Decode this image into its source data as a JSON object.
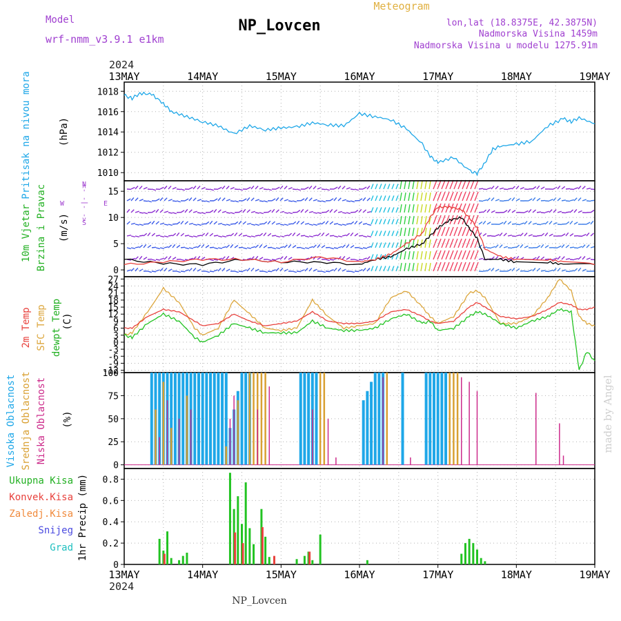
{
  "header": {
    "model_label": "Model",
    "model_name": "wrf-nmm_v3.9.1  e1km",
    "station_title": "NP_Lovcen",
    "product": "Meteogram",
    "coords": "lon,lat (18.8375E, 42.3875N)",
    "elevation": "Nadmorska Visina 1459m",
    "model_elevation": "Nadmorska Visina u modelu 1275.91m",
    "footer_station": "NP_Lovcen",
    "credit": "made by Angel"
  },
  "colors": {
    "pressure": "#1ea7e8",
    "temp2m": "#e8413c",
    "sfc": "#dca63c",
    "dewpt": "#22c322",
    "high_cloud": "#1ea7e8",
    "mid_cloud": "#d9a032",
    "low_cloud": "#cc2a8a",
    "total_precip": "#22c322",
    "conv_precip": "#e8413c",
    "frozen_precip": "#f08a3c",
    "snow": "#4a4ae0",
    "hail": "#20c0c0",
    "purple_text": "#a040d0",
    "gold_text": "#e0b040"
  },
  "time_axis": {
    "year": "2024",
    "ticks": [
      "13MAY",
      "14MAY",
      "15MAY",
      "16MAY",
      "17MAY",
      "18MAY",
      "19MAY"
    ]
  },
  "panels": {
    "pressure": {
      "label": "Pritisak na nivou mora",
      "unit": "(hPa)"
    },
    "wind": {
      "label1": "10m Vjetar",
      "label2": "Brzina i Pravac",
      "unit": "(m/s)",
      "compass": [
        "N",
        "W",
        "E",
        "S"
      ],
      "arrow_glyph": "<- -|- ->"
    },
    "temp": {
      "label1": "2m Temp",
      "label2": "SFC Temp",
      "label3": "dewpt Temp",
      "unit": "(C)"
    },
    "cloud": {
      "label1": "Visoka Oblacnost",
      "label2": "Srednja Oblacnost",
      "label3": "Niska Oblacnost",
      "unit": "(%)"
    },
    "precip": {
      "label": "1hr Precip (mm)",
      "legend": [
        "Ukupna Kisa",
        "Konvek.Kisa",
        "Zaledj.Kisa",
        "Snijeg",
        "Grad"
      ]
    }
  },
  "chart_data": [
    {
      "type": "line",
      "title": "Pritisak na nivou mora",
      "ylabel": "(hPa)",
      "ylim": [
        1009.2,
        1018.9
      ],
      "yticks": [
        "1018",
        "1016",
        "1014",
        "1012",
        "1010"
      ],
      "x_days": [
        0,
        0.1,
        0.2,
        0.35,
        0.5,
        0.6,
        0.8,
        1.0,
        1.2,
        1.4,
        1.6,
        1.8,
        2.0,
        2.2,
        2.4,
        2.6,
        2.8,
        3.0,
        3.2,
        3.4,
        3.6,
        3.8,
        3.9,
        4.0,
        4.2,
        4.4,
        4.5,
        4.6,
        4.7,
        4.8,
        5.0,
        5.2,
        5.4,
        5.6,
        5.7,
        5.8,
        6.0
      ],
      "series": [
        {
          "values": [
            1017.6,
            1017.3,
            1017.8,
            1017.7,
            1016.8,
            1016.0,
            1015.5,
            1015.0,
            1014.6,
            1013.8,
            1014.6,
            1014.2,
            1014.4,
            1014.5,
            1014.9,
            1014.7,
            1014.6,
            1015.8,
            1015.5,
            1015.2,
            1014.3,
            1012.8,
            1011.6,
            1011.0,
            1011.5,
            1010.2,
            1009.9,
            1011.0,
            1012.3,
            1012.6,
            1012.8,
            1013.1,
            1014.6,
            1015.3,
            1015.0,
            1015.4,
            1014.8
          ]
        }
      ]
    },
    {
      "type": "line",
      "title": "10m Vjetar Brzina i Pravac",
      "ylabel": "(m/s)",
      "ylim": [
        -1.3,
        17
      ],
      "yticks": [
        "15",
        "10",
        "5",
        "0"
      ],
      "x_days": [
        0,
        0.5,
        1.0,
        1.5,
        2.0,
        2.5,
        3.0,
        3.2,
        3.4,
        3.6,
        3.8,
        3.9,
        4.0,
        4.15,
        4.3,
        4.4,
        4.5,
        4.6,
        4.8,
        5.0,
        5.4,
        5.6,
        6.0
      ],
      "series": [
        {
          "values": [
            2.0,
            1.2,
            1.0,
            2.0,
            1.5,
            1.5,
            1.0,
            2.0,
            2.5,
            4.0,
            5.0,
            6.5,
            8.0,
            9.5,
            10.0,
            8.0,
            6.0,
            2.0,
            2.0,
            1.5,
            1.5,
            1.0,
            1.0
          ]
        },
        {
          "values": [
            1.0,
            1.5,
            2.0,
            2.0,
            1.5,
            2.5,
            1.5,
            2.0,
            3.0,
            5.0,
            7.0,
            10.0,
            12.0,
            12.0,
            11.5,
            10.0,
            8.0,
            4.0,
            2.5,
            2.0,
            2.0,
            1.5,
            1.0
          ]
        }
      ]
    },
    {
      "type": "line",
      "title": "2m Temp / SFC Temp / dewpt Temp",
      "ylabel": "(C)",
      "ylim": [
        -13,
        28
      ],
      "yticks": [
        "27",
        "24",
        "21",
        "18",
        "15",
        "12",
        "9",
        "6",
        "3",
        "0",
        "-3",
        "-6",
        "-9",
        "-12"
      ],
      "x_days": [
        0,
        0.1,
        0.3,
        0.5,
        0.7,
        0.9,
        1.0,
        1.2,
        1.4,
        1.6,
        1.8,
        2.0,
        2.2,
        2.4,
        2.6,
        2.8,
        3.0,
        3.2,
        3.4,
        3.6,
        3.8,
        3.9,
        4.0,
        4.2,
        4.4,
        4.5,
        4.6,
        4.8,
        5.0,
        5.2,
        5.4,
        5.55,
        5.7,
        5.8,
        5.9,
        6.0
      ],
      "series": [
        {
          "name": "2m Temp",
          "values": [
            6,
            6,
            11,
            14,
            13,
            9,
            7,
            8,
            12,
            9,
            7,
            8,
            9,
            13,
            9,
            8,
            8,
            9,
            13,
            14,
            11,
            9,
            8,
            9,
            15,
            17,
            15,
            11,
            10,
            11,
            14,
            17,
            16,
            14,
            14,
            15
          ]
        },
        {
          "name": "SFC Temp",
          "values": [
            3,
            4,
            13,
            23,
            17,
            6,
            3,
            6,
            18,
            12,
            6,
            5,
            6,
            18,
            11,
            6,
            7,
            8,
            19,
            22,
            15,
            11,
            8,
            11,
            21,
            22,
            19,
            8,
            8,
            11,
            19,
            27,
            22,
            11,
            8,
            7
          ]
        },
        {
          "name": "dewpt Temp",
          "values": [
            3,
            2,
            8,
            12,
            9,
            2,
            0,
            3,
            8,
            6,
            4,
            4,
            4,
            9,
            6,
            5,
            5,
            6,
            10,
            12,
            8,
            9,
            5,
            6,
            11,
            13,
            12,
            8,
            6,
            9,
            11,
            14,
            13,
            -12,
            -4,
            -8
          ]
        }
      ]
    },
    {
      "type": "bar",
      "title": "Visoka / Srednja / Niska Oblacnost",
      "ylabel": "(%)",
      "ylim": [
        -4,
        100
      ],
      "yticks": [
        "100",
        "75",
        "50",
        "25",
        "0"
      ],
      "series": [
        {
          "name": "Visoka Oblacnost",
          "bars": [
            [
              0.35,
              100
            ],
            [
              0.4,
              100
            ],
            [
              0.45,
              100
            ],
            [
              0.5,
              100
            ],
            [
              0.55,
              100
            ],
            [
              0.6,
              100
            ],
            [
              0.65,
              100
            ],
            [
              0.7,
              100
            ],
            [
              0.75,
              100
            ],
            [
              0.8,
              100
            ],
            [
              0.85,
              100
            ],
            [
              0.9,
              100
            ],
            [
              0.95,
              100
            ],
            [
              1.0,
              100
            ],
            [
              1.05,
              100
            ],
            [
              1.1,
              100
            ],
            [
              1.15,
              100
            ],
            [
              1.2,
              100
            ],
            [
              1.25,
              100
            ],
            [
              1.3,
              100
            ],
            [
              1.35,
              40
            ],
            [
              1.4,
              60
            ],
            [
              1.45,
              80
            ],
            [
              1.5,
              100
            ],
            [
              1.55,
              100
            ],
            [
              1.6,
              100
            ],
            [
              2.25,
              100
            ],
            [
              2.3,
              100
            ],
            [
              2.35,
              100
            ],
            [
              2.4,
              100
            ],
            [
              2.45,
              100
            ],
            [
              3.05,
              70
            ],
            [
              3.1,
              80
            ],
            [
              3.15,
              90
            ],
            [
              3.2,
              100
            ],
            [
              3.25,
              100
            ],
            [
              3.3,
              100
            ],
            [
              3.55,
              100
            ],
            [
              3.85,
              100
            ],
            [
              3.9,
              100
            ],
            [
              3.95,
              100
            ],
            [
              4.0,
              100
            ],
            [
              4.05,
              100
            ],
            [
              4.1,
              100
            ]
          ]
        },
        {
          "name": "Srednja Oblacnost",
          "bars": [
            [
              0.4,
              60
            ],
            [
              0.5,
              90
            ],
            [
              0.6,
              40
            ],
            [
              0.8,
              75
            ],
            [
              1.3,
              20
            ],
            [
              1.45,
              70
            ],
            [
              1.6,
              100
            ],
            [
              1.65,
              100
            ],
            [
              1.7,
              100
            ],
            [
              1.75,
              100
            ],
            [
              1.8,
              100
            ],
            [
              2.5,
              100
            ],
            [
              2.55,
              100
            ],
            [
              3.35,
              100
            ],
            [
              4.15,
              100
            ],
            [
              4.2,
              100
            ],
            [
              4.25,
              100
            ]
          ]
        },
        {
          "name": "Niska Oblacnost",
          "bars": [
            [
              0.45,
              30
            ],
            [
              0.55,
              70
            ],
            [
              0.7,
              50
            ],
            [
              0.85,
              60
            ],
            [
              1.35,
              50
            ],
            [
              1.4,
              75
            ],
            [
              1.7,
              60
            ],
            [
              1.85,
              85
            ],
            [
              2.4,
              60
            ],
            [
              2.6,
              50
            ],
            [
              2.7,
              8
            ],
            [
              3.3,
              95
            ],
            [
              3.65,
              8
            ],
            [
              4.3,
              95
            ],
            [
              4.4,
              90
            ],
            [
              4.5,
              80
            ],
            [
              5.25,
              78
            ],
            [
              5.55,
              45
            ],
            [
              5.6,
              10
            ]
          ]
        }
      ]
    },
    {
      "type": "bar",
      "title": "1hr Precip (mm)",
      "ylabel": "1hr Precip (mm)",
      "ylim": [
        0,
        0.9
      ],
      "yticks": [
        "0.8",
        "0.6",
        "0.4",
        "0.2",
        "0"
      ],
      "series": [
        {
          "name": "Ukupna Kisa",
          "bars": [
            [
              0.45,
              0.24
            ],
            [
              0.5,
              0.13
            ],
            [
              0.55,
              0.31
            ],
            [
              0.6,
              0.06
            ],
            [
              0.7,
              0.04
            ],
            [
              0.75,
              0.08
            ],
            [
              0.8,
              0.11
            ],
            [
              1.35,
              0.86
            ],
            [
              1.4,
              0.52
            ],
            [
              1.45,
              0.64
            ],
            [
              1.5,
              0.38
            ],
            [
              1.55,
              0.77
            ],
            [
              1.6,
              0.34
            ],
            [
              1.65,
              0.19
            ],
            [
              1.75,
              0.52
            ],
            [
              1.8,
              0.26
            ],
            [
              1.85,
              0.07
            ],
            [
              2.2,
              0.05
            ],
            [
              2.3,
              0.08
            ],
            [
              2.35,
              0.12
            ],
            [
              2.4,
              0.04
            ],
            [
              2.5,
              0.28
            ],
            [
              3.1,
              0.04
            ],
            [
              4.3,
              0.1
            ],
            [
              4.35,
              0.2
            ],
            [
              4.4,
              0.24
            ],
            [
              4.45,
              0.2
            ],
            [
              4.5,
              0.14
            ],
            [
              4.55,
              0.06
            ],
            [
              4.6,
              0.03
            ]
          ]
        },
        {
          "name": "Konvek.Kisa",
          "bars": [
            [
              0.5,
              0.1
            ],
            [
              1.4,
              0.3
            ],
            [
              1.5,
              0.2
            ],
            [
              1.75,
              0.35
            ],
            [
              1.9,
              0.08
            ],
            [
              2.35,
              0.12
            ]
          ]
        }
      ]
    }
  ]
}
